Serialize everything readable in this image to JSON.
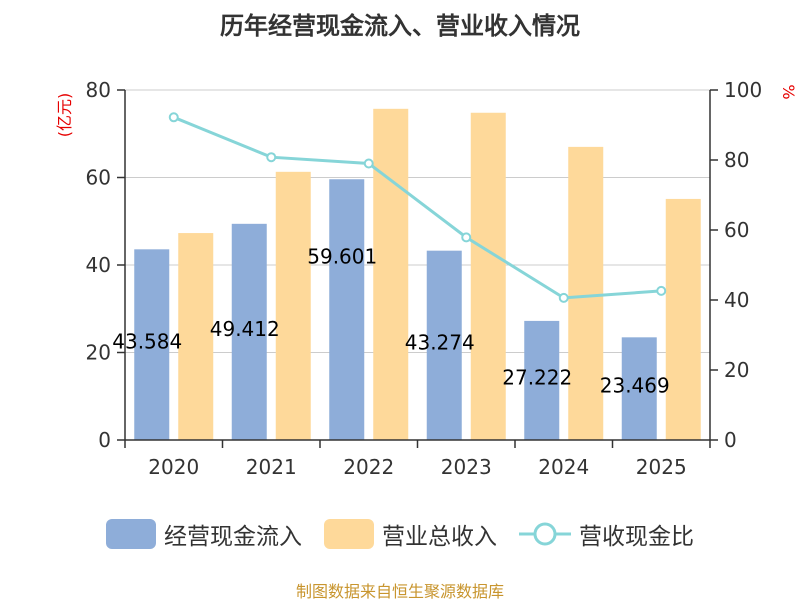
{
  "chart_data": {
    "type": "bar",
    "title": "历年经营现金流入、营业收入情况",
    "categories": [
      "2020",
      "2021",
      "2022",
      "2023",
      "2024",
      "2025"
    ],
    "left_axis": {
      "unit": "(亿元)",
      "ylim": [
        0,
        80
      ],
      "ticks": [
        "0",
        "20",
        "40",
        "60",
        "80"
      ]
    },
    "right_axis": {
      "unit": "%",
      "ylim": [
        0,
        100
      ],
      "ticks": [
        "0",
        "20",
        "40",
        "60",
        "80",
        "100"
      ]
    },
    "series": [
      {
        "name": "经营现金流入",
        "kind": "bar",
        "axis": "left",
        "color": "#8eadd9",
        "values": [
          43.584,
          49.412,
          59.601,
          43.274,
          27.222,
          23.469
        ],
        "labels": [
          "43.584",
          "49.412",
          "59.601",
          "43.274",
          "27.222",
          "23.469"
        ]
      },
      {
        "name": "营业总收入",
        "kind": "bar",
        "axis": "left",
        "color": "#fed99a",
        "values": [
          47.3,
          61.3,
          75.7,
          74.8,
          67.0,
          55.1
        ]
      },
      {
        "name": "营收现金比",
        "kind": "line",
        "axis": "right",
        "color": "#86d5d8",
        "values": [
          92.2,
          80.8,
          79.0,
          57.9,
          40.6,
          42.6
        ]
      }
    ],
    "grid": true,
    "legend_position": "bottom"
  },
  "source": "制图数据来自恒生聚源数据库"
}
